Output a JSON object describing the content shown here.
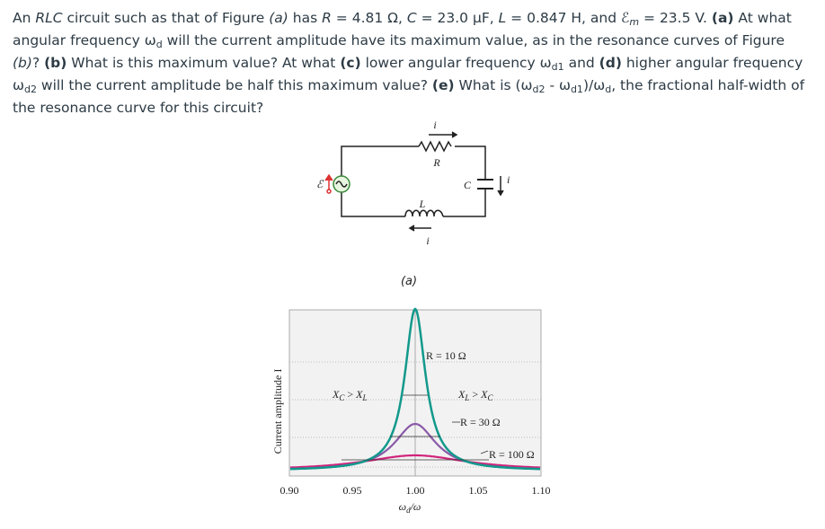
{
  "problem": {
    "runs": [
      "An ",
      "RLC",
      " circuit such as that of Figure ",
      "(a)",
      " has ",
      "R",
      " = 4.81 Ω, ",
      "C",
      " = 23.0 μF, ",
      "L",
      " = 0.847 H, and ",
      "ℰ",
      "m",
      " = 23.5 V. ",
      "(a)",
      " At what angular frequency ",
      "ω",
      "d",
      " will the current amplitude have its maximum value, as in the resonance curves of Figure ",
      "(b)",
      "? ",
      "(b)",
      " What is this maximum value? At what ",
      "(c)",
      " lower angular frequency ",
      "ω",
      "d1",
      " and ",
      "(d)",
      " higher angular frequency ",
      "ω",
      "d2",
      " will the current amplitude be half this maximum value? ",
      "(e)",
      " What is (",
      "ω",
      "d2",
      " - ",
      "ω",
      "d1",
      ")/",
      "ω",
      "d",
      ", the fractional half-width of the resonance curve for this circuit?"
    ]
  },
  "figure_a": {
    "current_top": "i",
    "resistor": "R",
    "emf": "ℰ",
    "capacitor": "C",
    "current_right": "i",
    "inductor": "L",
    "current_bottom": "i",
    "caption": "(a)"
  },
  "figure_b": {
    "y_label": "Current amplitude I",
    "x_label": [
      "ω",
      "d",
      "/ω"
    ],
    "xticks": [
      "0.90",
      "0.95",
      "1.00",
      "1.05",
      "1.10"
    ],
    "label_r10": "R = 10 Ω",
    "label_xc": [
      "X",
      "C",
      " > ",
      "X",
      "L"
    ],
    "label_xl": [
      "X",
      "L",
      " > ",
      "X",
      "C"
    ],
    "label_r30": "R = 30 Ω",
    "label_r100": "R = 100 Ω"
  }
}
